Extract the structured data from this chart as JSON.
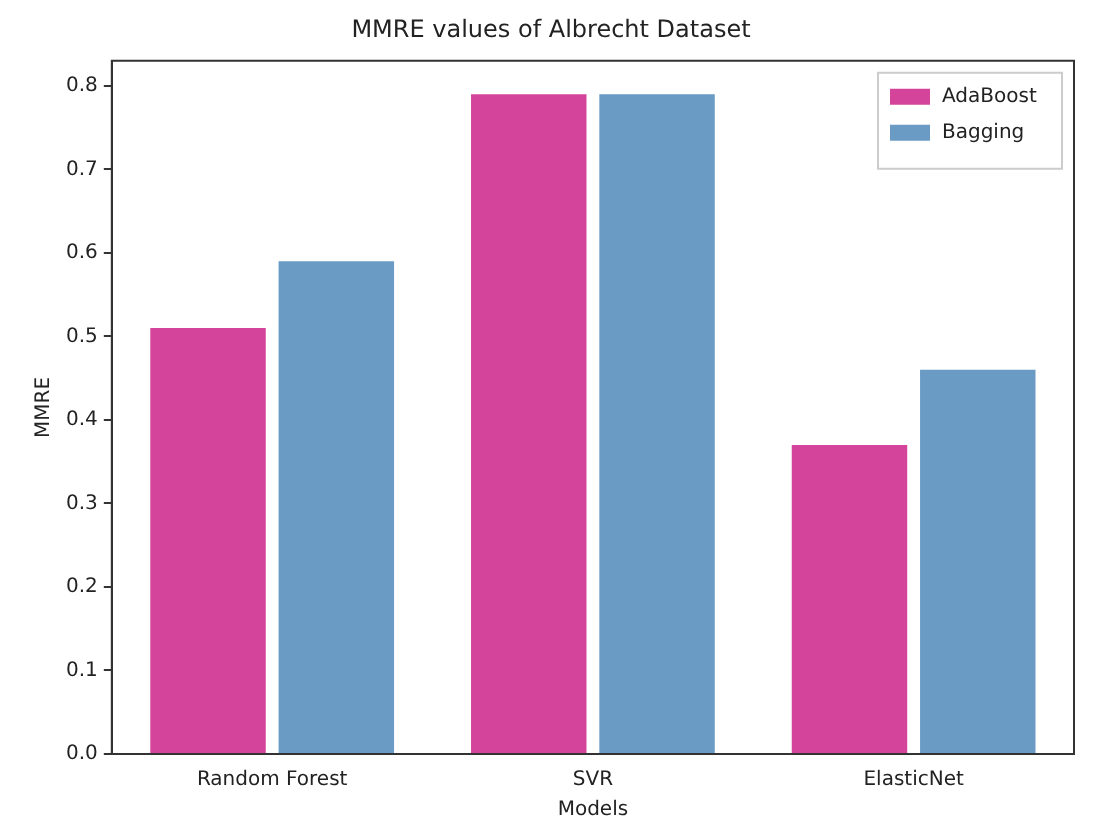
{
  "chart_data": {
    "type": "bar",
    "title": "MMRE values of Albrecht Dataset",
    "xlabel": "Models",
    "ylabel": "MMRE",
    "categories": [
      "Random Forest",
      "SVR",
      "ElasticNet"
    ],
    "series": [
      {
        "name": "AdaBoost",
        "color": "#d4449a",
        "values": [
          0.51,
          0.79,
          0.37
        ]
      },
      {
        "name": "Bagging",
        "color": "#6a9bc4",
        "values": [
          0.59,
          0.79,
          0.46
        ]
      }
    ],
    "ylim": [
      0,
      0.83
    ],
    "yticks": [
      {
        "value": 0,
        "label": "0.0"
      },
      0.1,
      0.2,
      0.3,
      0.4,
      0.5,
      0.6,
      0.7,
      0.8
    ],
    "grid": false,
    "legend": "top right"
  }
}
